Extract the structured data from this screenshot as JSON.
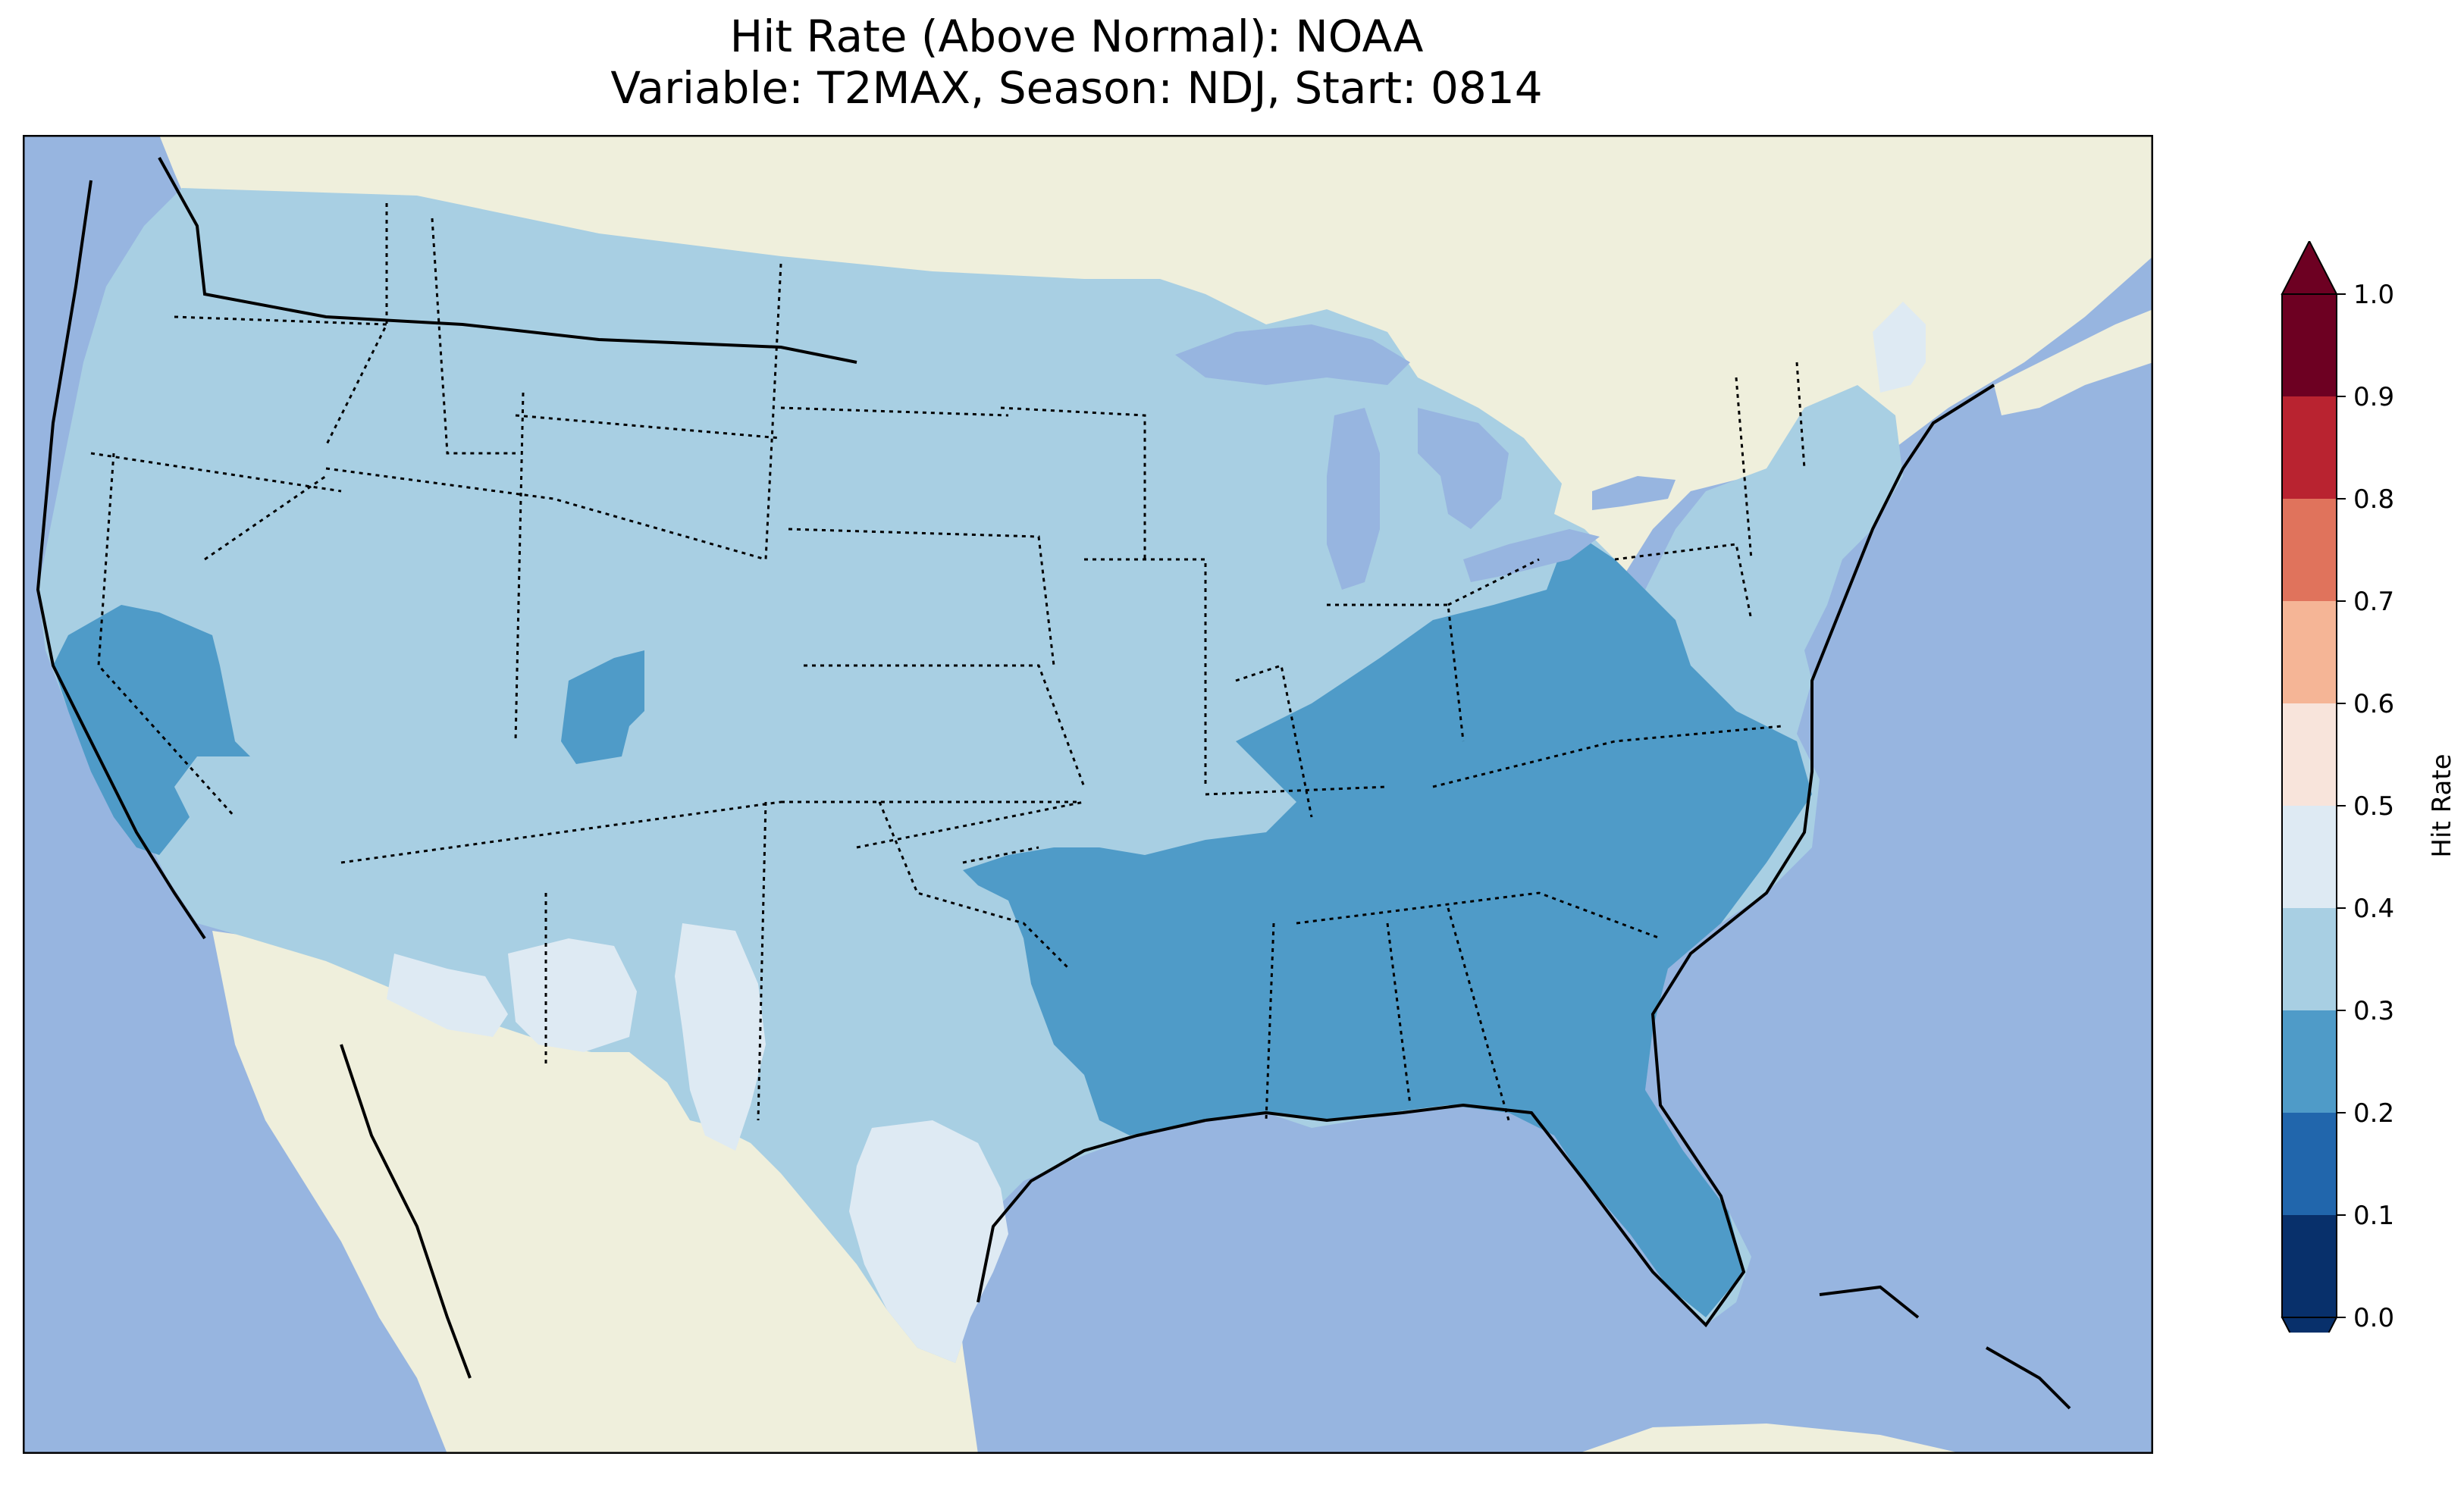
{
  "title": {
    "line1": "Hit Rate (Above Normal): NOAA",
    "line2": "Variable: T2MAX, Season: NDJ, Start: 0814"
  },
  "map": {
    "region": "Contiguous United States",
    "ocean_color": "#97b5e0",
    "land_color": "#efefdc",
    "dominant_value_range": "0.3-0.4",
    "regions": [
      {
        "name": "southeast",
        "value_range": "0.2-0.3"
      },
      {
        "name": "california-coast",
        "value_range": "0.2-0.3"
      },
      {
        "name": "western-colorado",
        "value_range": "0.2-0.3"
      },
      {
        "name": "west-texas-new-mexico",
        "value_range": "0.4-0.5"
      },
      {
        "name": "south-texas",
        "value_range": "0.4-0.5"
      },
      {
        "name": "maine-coast",
        "value_range": "0.4-0.5"
      }
    ]
  },
  "colorbar": {
    "label": "Hit Rate",
    "ticks": [
      "0.0",
      "0.1",
      "0.2",
      "0.3",
      "0.4",
      "0.5",
      "0.6",
      "0.7",
      "0.8",
      "0.9",
      "1.0"
    ],
    "colors": [
      "#08306b",
      "#2166ac",
      "#4f9bc8",
      "#a8cfe3",
      "#deeaf3",
      "#f8e4db",
      "#f5b596",
      "#e0735c",
      "#b92330",
      "#6d0022"
    ],
    "under_color": "#08306b",
    "over_color": "#6d0022",
    "extend": "both"
  }
}
